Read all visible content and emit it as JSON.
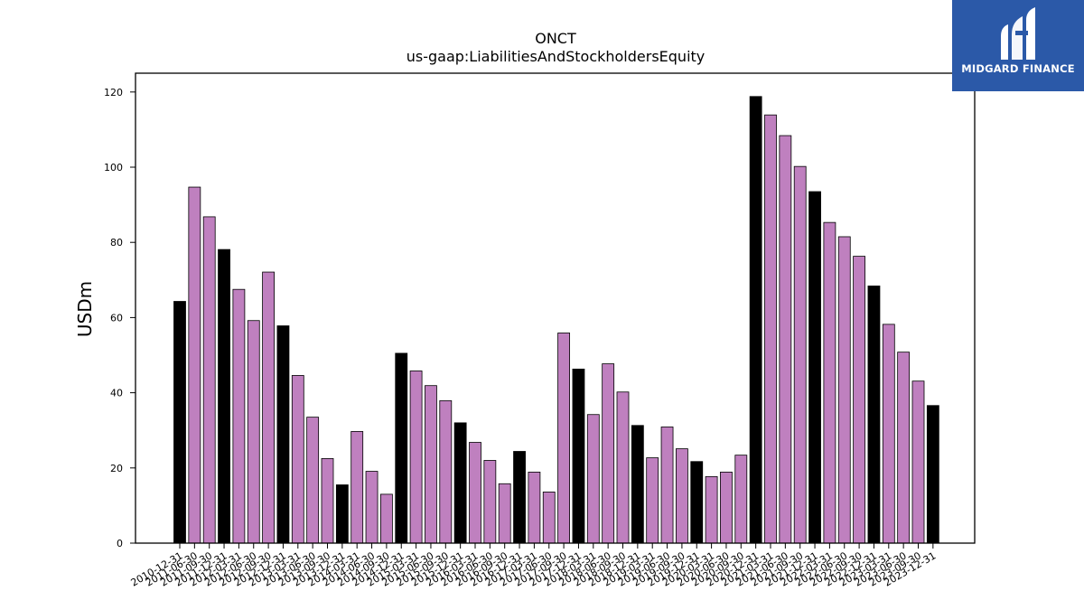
{
  "chart_data": {
    "type": "bar",
    "title": "ONCT",
    "subtitle": "us-gaap:LiabilitiesAndStockholdersEquity",
    "xlabel": "",
    "ylabel": "USDm",
    "ylim": [
      0,
      125
    ],
    "yticks": [
      0,
      20,
      40,
      60,
      80,
      100,
      120
    ],
    "grid": false,
    "colors": {
      "quarter": "#bf80bf",
      "year_end": "#000000"
    },
    "categories": [
      "2010-12-31",
      "2011-06-30",
      "2011-09-30",
      "2011-12-31",
      "2012-03-31",
      "2012-06-30",
      "2012-09-30",
      "2012-12-31",
      "2013-03-31",
      "2013-06-30",
      "2013-09-30",
      "2013-12-31",
      "2014-03-31",
      "2014-06-30",
      "2014-09-30",
      "2014-12-31",
      "2015-03-31",
      "2015-06-30",
      "2015-09-30",
      "2015-12-31",
      "2016-03-31",
      "2016-06-30",
      "2016-09-30",
      "2016-12-31",
      "2017-03-31",
      "2017-06-30",
      "2017-09-30",
      "2017-12-31",
      "2018-03-31",
      "2018-06-30",
      "2018-09-30",
      "2018-12-31",
      "2019-03-31",
      "2019-06-30",
      "2019-09-30",
      "2019-12-31",
      "2020-03-31",
      "2020-06-30",
      "2020-09-30",
      "2020-12-31",
      "2021-03-31",
      "2021-06-30",
      "2021-09-30",
      "2021-12-31",
      "2022-03-31",
      "2022-06-30",
      "2022-09-30",
      "2022-12-31",
      "2023-03-31",
      "2023-06-30",
      "2023-09-30",
      "2023-12-31"
    ],
    "values": [
      64.3,
      94.7,
      86.8,
      78.1,
      67.5,
      59.2,
      72.1,
      57.8,
      44.6,
      33.5,
      22.5,
      15.5,
      29.7,
      19.1,
      13.0,
      50.5,
      45.8,
      41.9,
      37.9,
      32.0,
      26.8,
      22.0,
      15.8,
      24.4,
      18.9,
      13.6,
      55.9,
      46.3,
      34.2,
      47.7,
      40.2,
      31.3,
      22.7,
      30.9,
      25.1,
      21.7,
      17.7,
      18.9,
      23.4,
      118.8,
      113.9,
      108.4,
      100.2,
      93.5,
      85.3,
      81.5,
      76.3,
      68.4,
      58.2,
      50.8,
      43.1,
      36.6
    ]
  },
  "logo": {
    "brand": "MIDGARD FINANCE"
  }
}
